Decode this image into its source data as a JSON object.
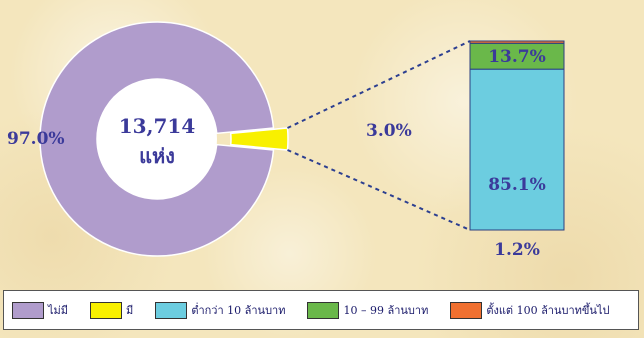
{
  "chart_data": {
    "type": "pie",
    "center_label": {
      "value": "13,714",
      "unit": "แห่ง"
    },
    "slices": [
      {
        "label": "ไม่มี",
        "value": 97.0,
        "display": "97.0%",
        "color": "#b09ccc"
      },
      {
        "label": "มี",
        "value": 3.0,
        "display": "3.0%",
        "color": "#f8f000"
      }
    ],
    "breakdown": {
      "type": "stacked-bar",
      "of_slice": "มี",
      "segments": [
        {
          "label": "ต่ำกว่า 10 ล้านบาท",
          "value": 85.1,
          "display": "85.1%",
          "color": "#6ccde0"
        },
        {
          "label": "10 – 99 ล้านบาท",
          "value": 13.7,
          "display": "13.7%",
          "color": "#6ab84a"
        },
        {
          "label": "ตั้งแต่ 100 ล้านบาทขึ้นไป",
          "value": 1.2,
          "display": "1.2%",
          "color": "#f07030"
        }
      ]
    },
    "legend": [
      {
        "label": "ไม่มี",
        "color": "#b09ccc"
      },
      {
        "label": "มี",
        "color": "#f8f000"
      },
      {
        "label": "ต่ำกว่า 10 ล้านบาท",
        "color": "#6ccde0"
      },
      {
        "label": "10 – 99 ล้านบาท",
        "color": "#6ab84a"
      },
      {
        "label": "ตั้งแต่ 100 ล้านบาทขึ้นไป",
        "color": "#f07030"
      }
    ]
  }
}
